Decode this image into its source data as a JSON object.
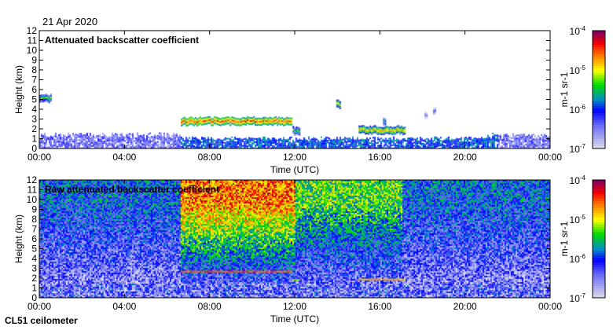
{
  "date": "21 Apr 2020",
  "footer": "CL51 ceilometer",
  "chart_data": [
    {
      "type": "heatmap",
      "title": "Attenuated backscatter coefficient",
      "xlabel": "Time (UTC)",
      "ylabel": "Height (km)",
      "xlim": [
        0,
        24
      ],
      "ylim": [
        0,
        12
      ],
      "xticks": [
        "00:00",
        "04:00",
        "08:00",
        "12:00",
        "16:00",
        "20:00",
        "00:00"
      ],
      "yticks": [
        "0",
        "1",
        "2",
        "3",
        "4",
        "5",
        "6",
        "7",
        "8",
        "9",
        "10",
        "11",
        "12"
      ],
      "colorbar": {
        "label": "m-1 sr-1",
        "ticks": [
          "10-7",
          "10-6",
          "10-5",
          "10-4"
        ],
        "range_log10": [
          -7,
          -4
        ]
      },
      "boundary_layer": {
        "top_km": 1.5,
        "log10": -6.7
      },
      "features": [
        {
          "t0": 0.0,
          "t1": 0.55,
          "h": 5.2,
          "log10": -5.3
        },
        {
          "t0": 6.65,
          "t1": 11.85,
          "h": 2.85,
          "log10": -4.5
        },
        {
          "t0": 11.9,
          "t1": 12.25,
          "h": 1.9,
          "log10": -5.2
        },
        {
          "t0": 13.95,
          "t1": 14.15,
          "h": 4.6,
          "log10": -5.0
        },
        {
          "t0": 15.0,
          "t1": 17.15,
          "h": 1.95,
          "log10": -4.8
        },
        {
          "t0": 16.15,
          "t1": 16.25,
          "h": 2.8,
          "log10": -5.5
        },
        {
          "t0": 18.1,
          "t1": 18.2,
          "h": 3.5,
          "log10": -6.2
        },
        {
          "t0": 18.5,
          "t1": 18.6,
          "h": 3.8,
          "log10": -6.2
        }
      ]
    },
    {
      "type": "heatmap",
      "title": "Raw attenuated backscatter coefficient",
      "xlabel": "Time (UTC)",
      "ylabel": "Height (km)",
      "xlim": [
        0,
        24
      ],
      "ylim": [
        0,
        12
      ],
      "xticks": [
        "00:00",
        "04:00",
        "08:00",
        "12:00",
        "16:00",
        "20:00",
        "00:00"
      ],
      "yticks": [
        "0",
        "1",
        "2",
        "3",
        "4",
        "5",
        "6",
        "7",
        "8",
        "9",
        "10",
        "11",
        "12"
      ],
      "colorbar": {
        "label": "m-1 sr-1",
        "ticks": [
          "10-7",
          "10-6",
          "10-5",
          "10-4"
        ],
        "range_log10": [
          -7,
          -4
        ]
      },
      "noisy_periods": [
        {
          "t0": 0.0,
          "t1": 6.6,
          "log10_at_top": -5.9
        },
        {
          "t0": 6.6,
          "t1": 12.0,
          "log10_at_top": -4.6
        },
        {
          "t0": 12.0,
          "t1": 17.0,
          "log10_at_top": -5.3
        },
        {
          "t0": 17.0,
          "t1": 24.0,
          "log10_at_top": -5.9
        }
      ],
      "features": [
        {
          "t0": 6.65,
          "t1": 11.85,
          "h": 2.75,
          "log10": -4.5
        },
        {
          "t0": 11.9,
          "t1": 12.25,
          "h": 1.9,
          "log10": -5.2
        },
        {
          "t0": 15.0,
          "t1": 17.15,
          "h": 1.95,
          "log10": -4.8
        }
      ]
    }
  ]
}
